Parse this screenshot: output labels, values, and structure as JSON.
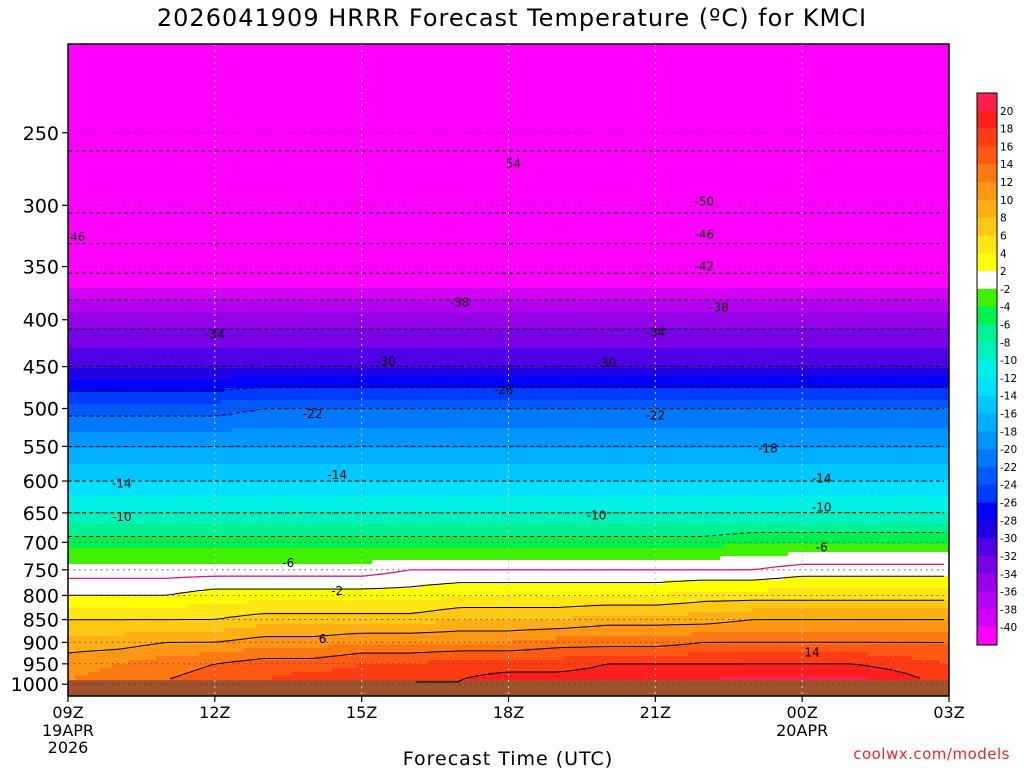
{
  "chart_data": {
    "type": "heatmap",
    "title": "2026041909 HRRR Forecast Temperature (ºC) for KMCI",
    "xlabel": "Forecast Time (UTC)",
    "ylabel": "",
    "x_ticks": [
      {
        "label": "09Z",
        "sub": [
          "19APR",
          "2026"
        ],
        "hours": 0
      },
      {
        "label": "12Z",
        "sub": [],
        "hours": 3
      },
      {
        "label": "15Z",
        "sub": [],
        "hours": 6
      },
      {
        "label": "18Z",
        "sub": [],
        "hours": 9
      },
      {
        "label": "21Z",
        "sub": [],
        "hours": 12
      },
      {
        "label": "00Z",
        "sub": [
          "20APR"
        ],
        "hours": 15
      },
      {
        "label": "03Z",
        "sub": [],
        "hours": 18
      }
    ],
    "xlim_hours": [
      0,
      18
    ],
    "y_ticks": [
      250,
      300,
      350,
      400,
      450,
      500,
      550,
      600,
      650,
      700,
      750,
      800,
      850,
      900,
      950,
      1000
    ],
    "ylim_hpa": [
      200,
      1030
    ],
    "y_scale": "log",
    "grid": true,
    "surface_pressure": [
      990,
      990,
      990,
      990,
      990,
      990,
      990,
      990,
      990,
      990,
      990,
      990,
      990,
      990,
      990,
      990,
      990,
      990,
      990
    ],
    "profiles": {
      "pressure": [
        200,
        250,
        300,
        350,
        400,
        450,
        500,
        550,
        600,
        650,
        700,
        750,
        800,
        850,
        900,
        950,
        990
      ],
      "temperature": [
        [
          -57,
          -55,
          -51,
          -43,
          -35,
          -30,
          -23,
          -18,
          -14,
          -10,
          -5,
          -1,
          2,
          6,
          9,
          11,
          12
        ],
        [
          -57,
          -55,
          -51,
          -43,
          -35,
          -30,
          -23,
          -18,
          -14,
          -10,
          -5,
          -1,
          2,
          6,
          9,
          12,
          13
        ],
        [
          -57,
          -55,
          -51,
          -43,
          -35,
          -30,
          -23,
          -18,
          -14,
          -10,
          -5,
          -1,
          2,
          6,
          10,
          13,
          14
        ],
        [
          -57,
          -55,
          -51,
          -43,
          -35,
          -30,
          -23,
          -18,
          -14,
          -10,
          -5,
          -1,
          3,
          6,
          10,
          14,
          15
        ],
        [
          -57,
          -55,
          -51,
          -43,
          -35,
          -30,
          -22,
          -18,
          -14,
          -10,
          -5,
          -1,
          3,
          7,
          11,
          15,
          16
        ],
        [
          -57,
          -55,
          -51,
          -43,
          -35,
          -30,
          -22,
          -18,
          -14,
          -10,
          -5,
          -1,
          3,
          7,
          11,
          15,
          17
        ],
        [
          -57,
          -55,
          -51,
          -43,
          -35,
          -30,
          -22,
          -18,
          -14,
          -10,
          -5,
          -1,
          3,
          7,
          12,
          16,
          17
        ],
        [
          -57,
          -55,
          -51,
          -43,
          -35,
          -30,
          -22,
          -18,
          -14,
          -10,
          -5,
          0,
          3,
          7,
          12,
          16,
          18
        ],
        [
          -57,
          -55,
          -51,
          -43,
          -35,
          -30,
          -22,
          -18,
          -14,
          -10,
          -5,
          0,
          4,
          8,
          12,
          17,
          18
        ],
        [
          -57,
          -55,
          -51,
          -43,
          -35,
          -30,
          -22,
          -18,
          -14,
          -10,
          -5,
          0,
          4,
          8,
          12,
          17,
          19
        ],
        [
          -57,
          -55,
          -51,
          -43,
          -35,
          -30,
          -22,
          -18,
          -14,
          -10,
          -5,
          0,
          4,
          8,
          13,
          17,
          19
        ],
        [
          -57,
          -55,
          -51,
          -43,
          -35,
          -30,
          -22,
          -18,
          -14,
          -10,
          -5,
          0,
          4,
          9,
          13,
          18,
          19
        ],
        [
          -57,
          -55,
          -51,
          -43,
          -35,
          -30,
          -22,
          -18,
          -14,
          -10,
          -5,
          0,
          4,
          9,
          13,
          18,
          20
        ],
        [
          -57,
          -55,
          -51,
          -43,
          -35,
          -30,
          -22,
          -18,
          -14,
          -10,
          -5,
          0,
          5,
          9,
          14,
          18,
          20
        ],
        [
          -57,
          -55,
          -51,
          -43,
          -35,
          -30,
          -22,
          -18,
          -14,
          -10,
          -4,
          0,
          5,
          10,
          14,
          18,
          21
        ],
        [
          -57,
          -55,
          -51,
          -43,
          -35,
          -30,
          -22,
          -18,
          -14,
          -10,
          -4,
          1,
          5,
          10,
          14,
          18,
          21
        ],
        [
          -57,
          -55,
          -51,
          -43,
          -35,
          -30,
          -22,
          -18,
          -14,
          -10,
          -4,
          1,
          5,
          10,
          14,
          18,
          21
        ],
        [
          -57,
          -55,
          -51,
          -43,
          -35,
          -30,
          -22,
          -18,
          -14,
          -10,
          -4,
          1,
          5,
          10,
          14,
          17,
          19
        ],
        [
          -57,
          -55,
          -51,
          -43,
          -35,
          -30,
          -22,
          -18,
          -14,
          -10,
          -4,
          1,
          5,
          10,
          14,
          16,
          17
        ]
      ]
    },
    "contour_labels": [
      {
        "text": "54",
        "hours": 9.1,
        "hpa": 270
      },
      {
        "text": "-50",
        "hours": 13,
        "hpa": 297
      },
      {
        "text": "46",
        "hours": 0.2,
        "hpa": 325
      },
      {
        "text": "-46",
        "hours": 13,
        "hpa": 323
      },
      {
        "text": "-42",
        "hours": 13,
        "hpa": 350
      },
      {
        "text": "-38",
        "hours": 8,
        "hpa": 383
      },
      {
        "text": "-38",
        "hours": 13.3,
        "hpa": 388
      },
      {
        "text": "-34",
        "hours": 3,
        "hpa": 415
      },
      {
        "text": "-34",
        "hours": 12,
        "hpa": 413
      },
      {
        "text": "-30",
        "hours": 6.5,
        "hpa": 444
      },
      {
        "text": "-30",
        "hours": 11,
        "hpa": 446
      },
      {
        "text": "-26",
        "hours": 8.9,
        "hpa": 477
      },
      {
        "text": "-22",
        "hours": 5,
        "hpa": 507
      },
      {
        "text": "-22",
        "hours": 12,
        "hpa": 509
      },
      {
        "text": "-18",
        "hours": 14.3,
        "hpa": 553
      },
      {
        "text": "-14",
        "hours": 1.1,
        "hpa": 604
      },
      {
        "text": "-14",
        "hours": 5.5,
        "hpa": 591
      },
      {
        "text": "-14",
        "hours": 15.4,
        "hpa": 596
      },
      {
        "text": "-10",
        "hours": 1.1,
        "hpa": 657
      },
      {
        "text": "-10",
        "hours": 10.8,
        "hpa": 654
      },
      {
        "text": "-10",
        "hours": 15.4,
        "hpa": 641
      },
      {
        "text": "-6",
        "hours": 4.5,
        "hpa": 737
      },
      {
        "text": "-6",
        "hours": 15.4,
        "hpa": 709
      },
      {
        "text": "-2",
        "hours": 5.5,
        "hpa": 791
      },
      {
        "text": "6",
        "hours": 5.2,
        "hpa": 893
      },
      {
        "text": "14",
        "hours": 15.2,
        "hpa": 923
      }
    ],
    "colorbar": {
      "labels": [
        20,
        18,
        16,
        14,
        12,
        10,
        8,
        6,
        4,
        2,
        -2,
        -4,
        -6,
        -8,
        -10,
        -12,
        -14,
        -16,
        -18,
        -20,
        -22,
        -24,
        -26,
        -28,
        -30,
        -32,
        -34,
        -36,
        -38,
        -40
      ],
      "bands": [
        {
          "min": 20,
          "max": 99,
          "color": "#ff1e50"
        },
        {
          "min": 18,
          "max": 20,
          "color": "#ff1e1e"
        },
        {
          "min": 16,
          "max": 18,
          "color": "#ff3c14"
        },
        {
          "min": 14,
          "max": 16,
          "color": "#ff5a14"
        },
        {
          "min": 12,
          "max": 14,
          "color": "#ff7814"
        },
        {
          "min": 10,
          "max": 12,
          "color": "#ff9614"
        },
        {
          "min": 8,
          "max": 10,
          "color": "#ffaf14"
        },
        {
          "min": 6,
          "max": 8,
          "color": "#ffc814"
        },
        {
          "min": 4,
          "max": 6,
          "color": "#ffe614"
        },
        {
          "min": 2,
          "max": 4,
          "color": "#ffff00"
        },
        {
          "min": -2,
          "max": 2,
          "color": "#ffffff"
        },
        {
          "min": -4,
          "max": -2,
          "color": "#40f000"
        },
        {
          "min": -6,
          "max": -4,
          "color": "#00f050"
        },
        {
          "min": -8,
          "max": -6,
          "color": "#00f096"
        },
        {
          "min": -10,
          "max": -8,
          "color": "#00f0be"
        },
        {
          "min": -12,
          "max": -10,
          "color": "#00f0e6"
        },
        {
          "min": -14,
          "max": -12,
          "color": "#00e1ff"
        },
        {
          "min": -16,
          "max": -14,
          "color": "#00c8ff"
        },
        {
          "min": -18,
          "max": -16,
          "color": "#00afff"
        },
        {
          "min": -20,
          "max": -18,
          "color": "#0096ff"
        },
        {
          "min": -22,
          "max": -20,
          "color": "#0078ff"
        },
        {
          "min": -24,
          "max": -22,
          "color": "#005aff"
        },
        {
          "min": -26,
          "max": -24,
          "color": "#003cff"
        },
        {
          "min": -28,
          "max": -26,
          "color": "#0000ff"
        },
        {
          "min": -30,
          "max": -28,
          "color": "#1e00e6"
        },
        {
          "min": -32,
          "max": -30,
          "color": "#5000e6"
        },
        {
          "min": -34,
          "max": -32,
          "color": "#7800e6"
        },
        {
          "min": -36,
          "max": -34,
          "color": "#9600eb"
        },
        {
          "min": -38,
          "max": -36,
          "color": "#b400f0"
        },
        {
          "min": -40,
          "max": -38,
          "color": "#d200f5"
        },
        {
          "min": -99,
          "max": -40,
          "color": "#ff00ff"
        }
      ]
    },
    "ground_color": "#a0522d",
    "freezing_line_color": "#e0187c"
  },
  "credit": "coolwx.com/models"
}
